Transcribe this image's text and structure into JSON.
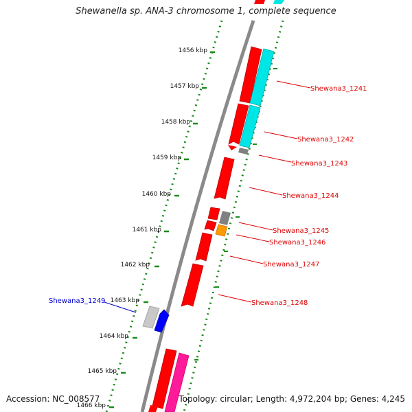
{
  "title": "Shewanella sp. ANA-3 chromosome 1, complete sequence",
  "footer": {
    "accession": "Accession: NC_008577",
    "topology": "Topology: circular; Length: 4,972,204 bp; Genes: 4,245"
  },
  "colors": {
    "backbone": "#8a8a8a",
    "forward_cds": "#ff0000",
    "reverse_cds": "#ff0000",
    "cyan_feature": "#00e5e5",
    "gray_feature": "#808080",
    "orange_feature": "#ff9900",
    "light_gray_feature": "#c8c8c8",
    "blue_feature": "#0000ff",
    "pink_feature": "#ff1a9a",
    "tick_green": "#1a8a1a",
    "label_red": "#dd0000",
    "label_blue": "#0000cc"
  },
  "ticks": [
    {
      "label": "1456 kbp"
    },
    {
      "label": "1457 kbp"
    },
    {
      "label": "1458 kbp"
    },
    {
      "label": "1459 kbp"
    },
    {
      "label": "1460 kbp"
    },
    {
      "label": "1461 kbp"
    },
    {
      "label": "1462 kbp"
    },
    {
      "label": "1463 kbp"
    },
    {
      "label": "1464 kbp"
    },
    {
      "label": "1465 kbp"
    },
    {
      "label": "1466 kbp"
    }
  ],
  "genes": [
    {
      "label": "Shewana3_1241",
      "color": "#dd0000"
    },
    {
      "label": "Shewana3_1242",
      "color": "#dd0000"
    },
    {
      "label": "Shewana3_1243",
      "color": "#dd0000"
    },
    {
      "label": "Shewana3_1244",
      "color": "#dd0000"
    },
    {
      "label": "Shewana3_1245",
      "color": "#dd0000"
    },
    {
      "label": "Shewana3_1246",
      "color": "#dd0000"
    },
    {
      "label": "Shewana3_1247",
      "color": "#dd0000"
    },
    {
      "label": "Shewana3_1248",
      "color": "#dd0000"
    },
    {
      "label": "Shewana3_1249",
      "color": "#0000cc"
    }
  ]
}
